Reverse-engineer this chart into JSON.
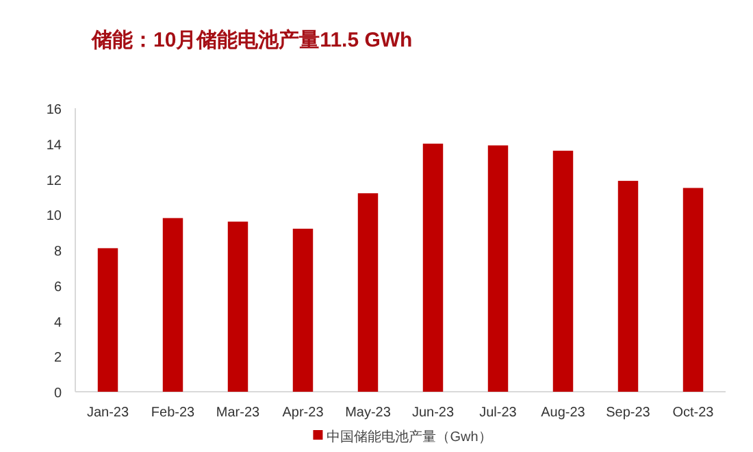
{
  "chart_data": {
    "type": "bar",
    "title": "储能：10月储能电池产量11.5 GWh",
    "categories": [
      "Jan-23",
      "Feb-23",
      "Mar-23",
      "Apr-23",
      "May-23",
      "Jun-23",
      "Jul-23",
      "Aug-23",
      "Sep-23",
      "Oct-23"
    ],
    "series": [
      {
        "name": "中国储能电池产量（Gwh）",
        "color": "#c00000",
        "values": [
          8.1,
          9.8,
          9.6,
          9.2,
          11.2,
          14.0,
          13.9,
          13.6,
          11.9,
          11.5
        ]
      }
    ],
    "ylim": [
      0,
      16
    ],
    "yticks": [
      0,
      2,
      4,
      6,
      8,
      10,
      12,
      14,
      16
    ],
    "grid": false,
    "legend": "bottom"
  }
}
